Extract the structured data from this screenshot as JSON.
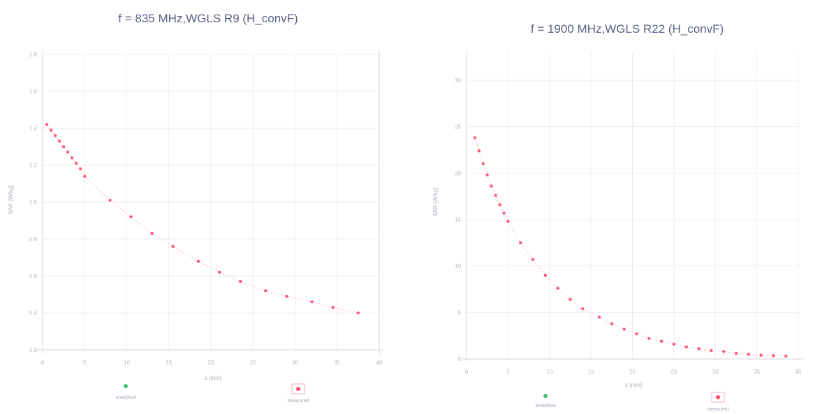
{
  "colors": {
    "measured": "#ff5a78",
    "trend": "#ff9db0",
    "axis": "#d6d6de",
    "text": "#5b5f86",
    "legend_green": "#3dbf7a",
    "legend_red": "#ff4f6b"
  },
  "chart_data": [
    {
      "type": "scatter",
      "title": "f = 835 MHz,WGLS R9 (H_convF)",
      "xlabel": "z [mm]",
      "ylabel": "SAR [W/kg]",
      "x_ticks": [
        "0",
        "5",
        "10",
        "15",
        "20",
        "25",
        "30",
        "35",
        "40"
      ],
      "y_ticks": [
        "0.2",
        "0.4",
        "0.6",
        "0.8",
        "1.0",
        "1.2",
        "1.4",
        "1.6",
        "1.8"
      ],
      "xlim": [
        0,
        40
      ],
      "ylim": [
        0.2,
        1.8
      ],
      "legend": [
        {
          "label": "analytical",
          "color": "#3dbf7a"
        },
        {
          "label": "measured",
          "color": "#ff4f6b"
        }
      ],
      "series": [
        {
          "name": "measured",
          "x": [
            0.5,
            1,
            1.5,
            2,
            2.5,
            3,
            3.5,
            4,
            4.5,
            5,
            8,
            10.5,
            13,
            15.5,
            18.5,
            21,
            23.5,
            26.5,
            29,
            32,
            34.5,
            37.5
          ],
          "y": [
            1.42,
            1.39,
            1.36,
            1.33,
            1.3,
            1.27,
            1.24,
            1.21,
            1.18,
            1.14,
            1.01,
            0.92,
            0.83,
            0.76,
            0.68,
            0.62,
            0.57,
            0.52,
            0.49,
            0.46,
            0.43,
            0.4
          ]
        }
      ]
    },
    {
      "type": "scatter",
      "title": "f = 1900 MHz,WGLS R22 (H_convF)",
      "xlabel": "z [mm]",
      "ylabel": "SAR [W/kg]",
      "x_ticks": [
        "0",
        "5",
        "10",
        "15",
        "20",
        "25",
        "30",
        "35",
        "40"
      ],
      "y_ticks": [
        "0",
        "5",
        "10",
        "15",
        "20",
        "25",
        "30"
      ],
      "xlim": [
        0,
        40
      ],
      "ylim": [
        0,
        33
      ],
      "legend": [
        {
          "label": "analytical",
          "color": "#3dbf7a"
        },
        {
          "label": "measured",
          "color": "#ff4f6b"
        }
      ],
      "series": [
        {
          "name": "measured",
          "x": [
            1,
            1.5,
            2,
            2.5,
            3,
            3.5,
            4,
            4.5,
            5,
            6.5,
            8,
            9.5,
            11,
            12.5,
            14,
            16,
            17.5,
            19,
            20.5,
            22,
            23.5,
            25,
            26.5,
            28,
            29.5,
            31,
            32.5,
            34,
            35.5,
            37,
            38.5
          ],
          "y": [
            23.8,
            22.4,
            21.0,
            19.8,
            18.6,
            17.6,
            16.6,
            15.7,
            14.8,
            12.5,
            10.7,
            9.0,
            7.6,
            6.4,
            5.4,
            4.5,
            3.8,
            3.2,
            2.7,
            2.2,
            1.9,
            1.6,
            1.3,
            1.1,
            0.9,
            0.8,
            0.6,
            0.5,
            0.4,
            0.35,
            0.3
          ]
        }
      ]
    }
  ]
}
